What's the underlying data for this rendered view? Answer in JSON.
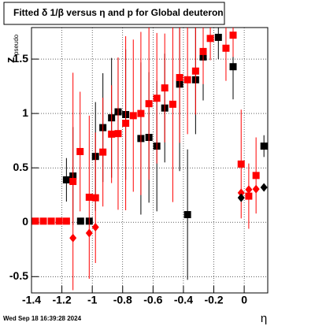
{
  "chart_data": {
    "type": "scatter",
    "title": "Fitted δ 1/β versus η and p for Global deuteron",
    "x_label": "η",
    "y_label": "z",
    "y_label_sub": "pseudo",
    "timestamp": "Wed Sep 18 16:39:28 2024",
    "xlim": [
      -1.4,
      0.155
    ],
    "ylim": [
      -0.65,
      1.79
    ],
    "xticks": [
      -1.4,
      -1.2,
      -1,
      -0.8,
      -0.6,
      -0.4,
      -0.2,
      0
    ],
    "yticks": [
      -0.5,
      0,
      0.5,
      1,
      1.5
    ],
    "grid": true,
    "series": [
      {
        "marker": "square",
        "color": "#000000",
        "x": [
          -1.17,
          -1.127,
          -1.077,
          -1.02,
          -0.979,
          -0.93,
          -0.873,
          -0.83,
          -0.78,
          -0.68,
          -0.627,
          -0.575,
          -0.523,
          -0.425,
          -0.373,
          -0.32,
          -0.27,
          -0.17,
          -0.073,
          0.13
        ],
        "values": [
          0.39,
          0.425,
          0.01,
          0.01,
          0.605,
          0.87,
          0.96,
          1.015,
          0.99,
          0.77,
          0.78,
          0.7,
          1.05,
          1.27,
          0.07,
          1.31,
          1.52,
          1.7,
          1.43,
          0.7
        ],
        "errors": [
          0.2,
          0.45,
          0.02,
          0.02,
          0.5,
          0.5,
          0.55,
          0.5,
          0.6,
          0.7,
          0.6,
          0.6,
          0.5,
          0.8,
          0.6,
          0.5,
          0.4,
          0.2,
          0.3,
          0.1
        ]
      },
      {
        "marker": "square",
        "color": "#ff0000",
        "x": [
          -1.374,
          -1.322,
          -1.27,
          -1.218,
          -1.17,
          -1.127,
          -1.08,
          -1.02,
          -0.979,
          -0.93,
          -0.873,
          -0.83,
          -0.78,
          -0.73,
          -0.68,
          -0.627,
          -0.575,
          -0.523,
          -0.47,
          -0.425,
          -0.373,
          -0.32,
          -0.27,
          -0.223,
          -0.12,
          -0.073,
          -0.02,
          0.03,
          0.078
        ],
        "values": [
          0.01,
          0.01,
          0.01,
          0.01,
          0.01,
          0.375,
          0.65,
          0.23,
          0.225,
          0.645,
          0.81,
          0.815,
          0.91,
          0.98,
          1.0,
          1.09,
          1.14,
          1.235,
          1.085,
          1.33,
          1.31,
          1.39,
          1.57,
          1.69,
          1.6,
          1.72,
          0.535,
          0.24,
          0.43
        ],
        "errors": [
          0.02,
          0.02,
          0.02,
          0.02,
          0.02,
          1.0,
          0.55,
          0.75,
          0.6,
          0.5,
          0.45,
          0.7,
          0.8,
          0.7,
          0.75,
          0.7,
          0.6,
          0.5,
          0.9,
          0.6,
          0.5,
          0.4,
          0.3,
          0.2,
          0.3,
          0.2,
          0.5,
          0.3,
          0.35
        ]
      },
      {
        "marker": "diamond",
        "color": "#ff0000",
        "x": [
          -1.127,
          -1.02,
          -0.979,
          -0.02,
          0.03,
          0.078
        ],
        "values": [
          -0.145,
          -0.1,
          -0.045,
          0.27,
          0.3,
          0.305
        ]
      },
      {
        "marker": "diamond",
        "color": "#000000",
        "x": [
          -0.02,
          0.13
        ],
        "values": [
          0.225,
          0.32
        ]
      }
    ]
  }
}
